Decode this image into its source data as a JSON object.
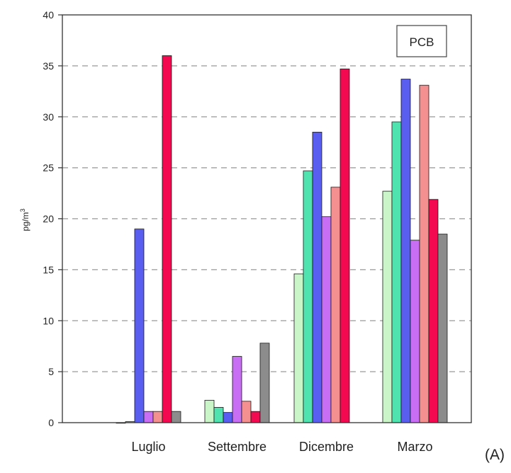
{
  "panel_label": "(A)",
  "chart_data": {
    "type": "bar",
    "title": "",
    "legend_box_label": "PCB",
    "xlabel": "",
    "ylabel": "pg/m",
    "ylabel_superscript": "3",
    "ylim": [
      0,
      40
    ],
    "yticks": [
      0,
      5,
      10,
      15,
      20,
      25,
      30,
      35,
      40
    ],
    "grid": {
      "y": true,
      "style": "dashed"
    },
    "categories": [
      "Luglio",
      "Settembre",
      "Dicembre",
      "Marzo"
    ],
    "series": [
      {
        "color": "#c9f5c9",
        "values": [
          0,
          2.2,
          14.6,
          22.7
        ]
      },
      {
        "color": "#4fe3b0",
        "values": [
          0.1,
          1.5,
          24.7,
          29.5
        ]
      },
      {
        "color": "#5a5ef0",
        "values": [
          19.0,
          1.0,
          28.5,
          33.7
        ]
      },
      {
        "color": "#c76ef5",
        "values": [
          1.1,
          6.5,
          20.2,
          17.9
        ]
      },
      {
        "color": "#f49090",
        "values": [
          1.1,
          2.1,
          23.1,
          33.1
        ]
      },
      {
        "color": "#f2094f",
        "values": [
          36.0,
          1.1,
          34.7,
          21.9
        ]
      },
      {
        "color": "#8c8c8c",
        "values": [
          1.1,
          7.8,
          null,
          18.5
        ]
      }
    ]
  }
}
